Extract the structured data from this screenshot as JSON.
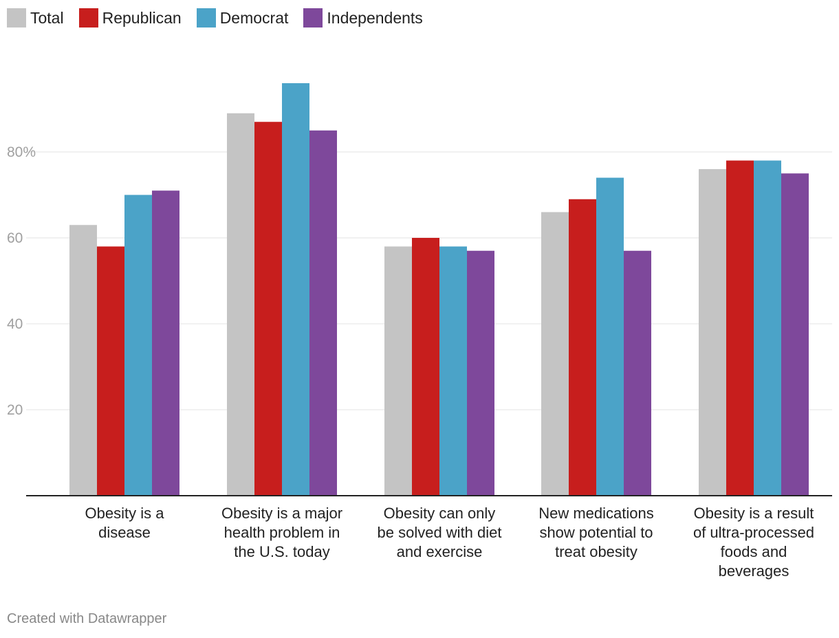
{
  "chart_data": {
    "type": "bar",
    "title": "",
    "xlabel": "",
    "ylabel": "",
    "ylim": [
      0,
      100
    ],
    "y_ticks": [
      20,
      40,
      60,
      80
    ],
    "y_tick_labels": [
      "20",
      "40",
      "60",
      "80%"
    ],
    "grid": true,
    "legend_position": "top-left",
    "categories": [
      [
        "Obesity is a",
        "disease"
      ],
      [
        "Obesity is a major",
        "health problem in",
        "the U.S. today"
      ],
      [
        "Obesity can only",
        "be solved with diet",
        "and exercise"
      ],
      [
        "New medications",
        "show potential to",
        "treat obesity"
      ],
      [
        "Obesity is a result",
        "of ultra-processed",
        "foods and",
        "beverages"
      ]
    ],
    "series": [
      {
        "name": "Total",
        "color": "#c4c4c4",
        "values": [
          63,
          89,
          58,
          66,
          76
        ]
      },
      {
        "name": "Republican",
        "color": "#c71e1d",
        "values": [
          58,
          87,
          60,
          69,
          78
        ]
      },
      {
        "name": "Democrat",
        "color": "#4ba3c8",
        "values": [
          70,
          96,
          58,
          74,
          78
        ]
      },
      {
        "name": "Independents",
        "color": "#7e489b",
        "values": [
          71,
          85,
          57,
          57,
          75
        ]
      }
    ]
  },
  "legend": {
    "items": [
      {
        "label": "Total"
      },
      {
        "label": "Republican"
      },
      {
        "label": "Democrat"
      },
      {
        "label": "Independents"
      }
    ]
  },
  "footer": {
    "credit": "Created with Datawrapper"
  }
}
